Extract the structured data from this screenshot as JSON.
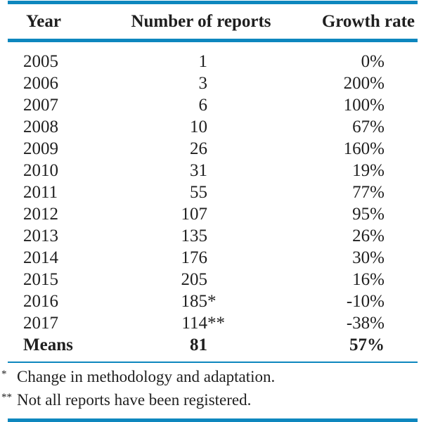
{
  "accent_color": "#0e87be",
  "text_color": "#1f1f1f",
  "table": {
    "columns": [
      "Year",
      "Number of reports",
      "Growth rate"
    ],
    "rows": [
      {
        "year": "2005",
        "reports": "1",
        "marker": "",
        "growth": "0%",
        "bold": false
      },
      {
        "year": "2006",
        "reports": "3",
        "marker": "",
        "growth": "200%",
        "bold": false
      },
      {
        "year": "2007",
        "reports": "6",
        "marker": "",
        "growth": "100%",
        "bold": false
      },
      {
        "year": "2008",
        "reports": "10",
        "marker": "",
        "growth": "67%",
        "bold": false
      },
      {
        "year": "2009",
        "reports": "26",
        "marker": "",
        "growth": "160%",
        "bold": false
      },
      {
        "year": "2010",
        "reports": "31",
        "marker": "",
        "growth": "19%",
        "bold": false
      },
      {
        "year": "2011",
        "reports": "55",
        "marker": "",
        "growth": "77%",
        "bold": false
      },
      {
        "year": "2012",
        "reports": "107",
        "marker": "",
        "growth": "95%",
        "bold": false
      },
      {
        "year": "2013",
        "reports": "135",
        "marker": "",
        "growth": "26%",
        "bold": false
      },
      {
        "year": "2014",
        "reports": "176",
        "marker": "",
        "growth": "30%",
        "bold": false
      },
      {
        "year": "2015",
        "reports": "205",
        "marker": "",
        "growth": "16%",
        "bold": false
      },
      {
        "year": "2016",
        "reports": "185",
        "marker": "*",
        "growth": "-10%",
        "bold": false
      },
      {
        "year": "2017",
        "reports": "114",
        "marker": "**",
        "growth": "-38%",
        "bold": false
      },
      {
        "year": "Means",
        "reports": "81",
        "marker": "",
        "growth": "57%",
        "bold": true
      }
    ],
    "footnotes": [
      {
        "marker": "*",
        "text": "Change in methodology and adaptation."
      },
      {
        "marker": "**",
        "text": "Not all reports have been registered."
      }
    ]
  },
  "chart_data": {
    "type": "table",
    "title": "",
    "categories": [
      "2005",
      "2006",
      "2007",
      "2008",
      "2009",
      "2010",
      "2011",
      "2012",
      "2013",
      "2014",
      "2015",
      "2016",
      "2017",
      "Means"
    ],
    "series": [
      {
        "name": "Number of reports",
        "values": [
          1,
          3,
          6,
          10,
          26,
          31,
          55,
          107,
          135,
          176,
          205,
          185,
          114,
          81
        ]
      },
      {
        "name": "Growth rate (%)",
        "values": [
          0,
          200,
          100,
          67,
          160,
          19,
          77,
          95,
          26,
          30,
          16,
          -10,
          -38,
          57
        ]
      }
    ]
  }
}
